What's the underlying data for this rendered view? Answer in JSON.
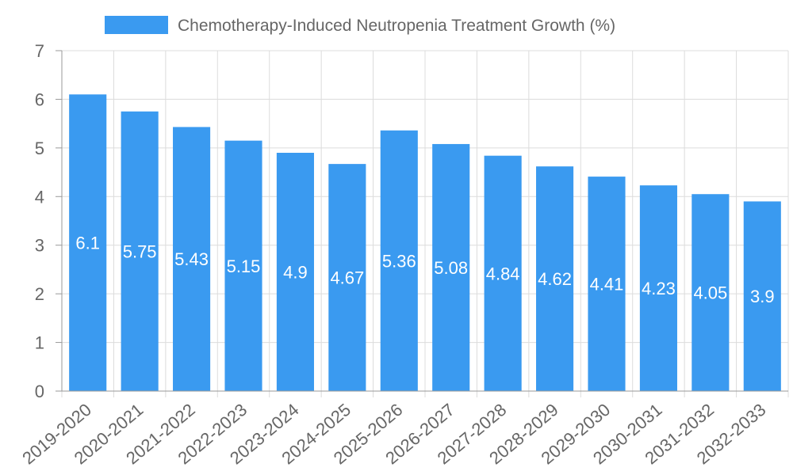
{
  "colors": {
    "bar": "#3a9af0"
  },
  "chart_data": {
    "type": "bar",
    "title": "",
    "xlabel": "",
    "ylabel": "",
    "ylim": [
      0,
      7
    ],
    "yticks": [
      "0",
      "1",
      "2",
      "3",
      "4",
      "5",
      "6",
      "7"
    ],
    "grid": true,
    "legend_position": "top-center",
    "categories": [
      "2019-2020",
      "2020-2021",
      "2021-2022",
      "2022-2023",
      "2023-2024",
      "2024-2025",
      "2025-2026",
      "2026-2027",
      "2027-2028",
      "2028-2029",
      "2029-2030",
      "2030-2031",
      "2031-2032",
      "2032-2033"
    ],
    "series": [
      {
        "name": "Chemotherapy-Induced Neutropenia Treatment Growth (%)",
        "values": [
          6.1,
          5.75,
          5.43,
          5.15,
          4.9,
          4.67,
          5.36,
          5.08,
          4.84,
          4.62,
          4.41,
          4.23,
          4.05,
          3.9
        ],
        "labels": [
          "6.1",
          "5.75",
          "5.43",
          "5.15",
          "4.9",
          "4.67",
          "5.36",
          "5.08",
          "4.84",
          "4.62",
          "4.41",
          "4.23",
          "4.05",
          "3.9"
        ]
      }
    ]
  }
}
